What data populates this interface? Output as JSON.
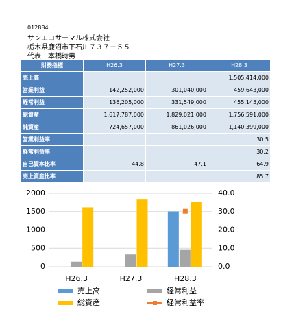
{
  "header": {
    "code": "012884",
    "name": "サンエコサーマル株式会社",
    "address": "栃木県鹿沼市下石川７３７－５５",
    "representative": "代表　本橋時男"
  },
  "table": {
    "columns": [
      "財務指標",
      "H26.3",
      "H27.3",
      "H28.3"
    ],
    "rows": [
      [
        "売上高",
        null,
        null,
        "1,505,414,000"
      ],
      [
        "営業利益",
        "142,252,000",
        "301,040,000",
        "459,643,000"
      ],
      [
        "経常利益",
        "136,205,000",
        "331,549,000",
        "455,145,000"
      ],
      [
        "総資産",
        "1,617,787,000",
        "1,829,021,000",
        "1,756,591,000"
      ],
      [
        "純資産",
        "724,657,000",
        "861,026,000",
        "1,140,399,000"
      ],
      [
        "営業利益率",
        null,
        null,
        "30.5"
      ],
      [
        "経常利益率",
        null,
        null,
        "30.2"
      ],
      [
        "自己資本比率",
        "44.8",
        "47.1",
        "64.9"
      ],
      [
        "売上資産比率",
        null,
        null,
        "85.7"
      ]
    ]
  },
  "chart_data": {
    "type": "bar",
    "categories": [
      "H26.3",
      "H27.3",
      "H28.3"
    ],
    "series": [
      {
        "name": "売上高",
        "color": "#5b9bd5",
        "values": [
          null,
          null,
          1505
        ]
      },
      {
        "name": "経常利益",
        "color": "#a5a5a5",
        "values": [
          136,
          332,
          455
        ]
      },
      {
        "name": "総資産",
        "color": "#ffc000",
        "values": [
          1618,
          1829,
          1757
        ]
      },
      {
        "name": "経常利益率",
        "color": "#ed7d31",
        "axis": "y2",
        "type": "line",
        "values": [
          null,
          null,
          30.2
        ]
      }
    ],
    "ylim": [
      0,
      2000
    ],
    "yticks": [
      0,
      500,
      1000,
      1500,
      2000
    ],
    "y2lim": [
      0,
      40
    ],
    "y2ticks": [
      {
        "value": 0,
        "label": "0.0"
      },
      {
        "value": 10,
        "label": "10.0"
      },
      {
        "value": 20,
        "label": "20.0"
      },
      {
        "value": 30,
        "label": "30.0"
      },
      {
        "value": 40,
        "label": "40.0"
      }
    ]
  }
}
